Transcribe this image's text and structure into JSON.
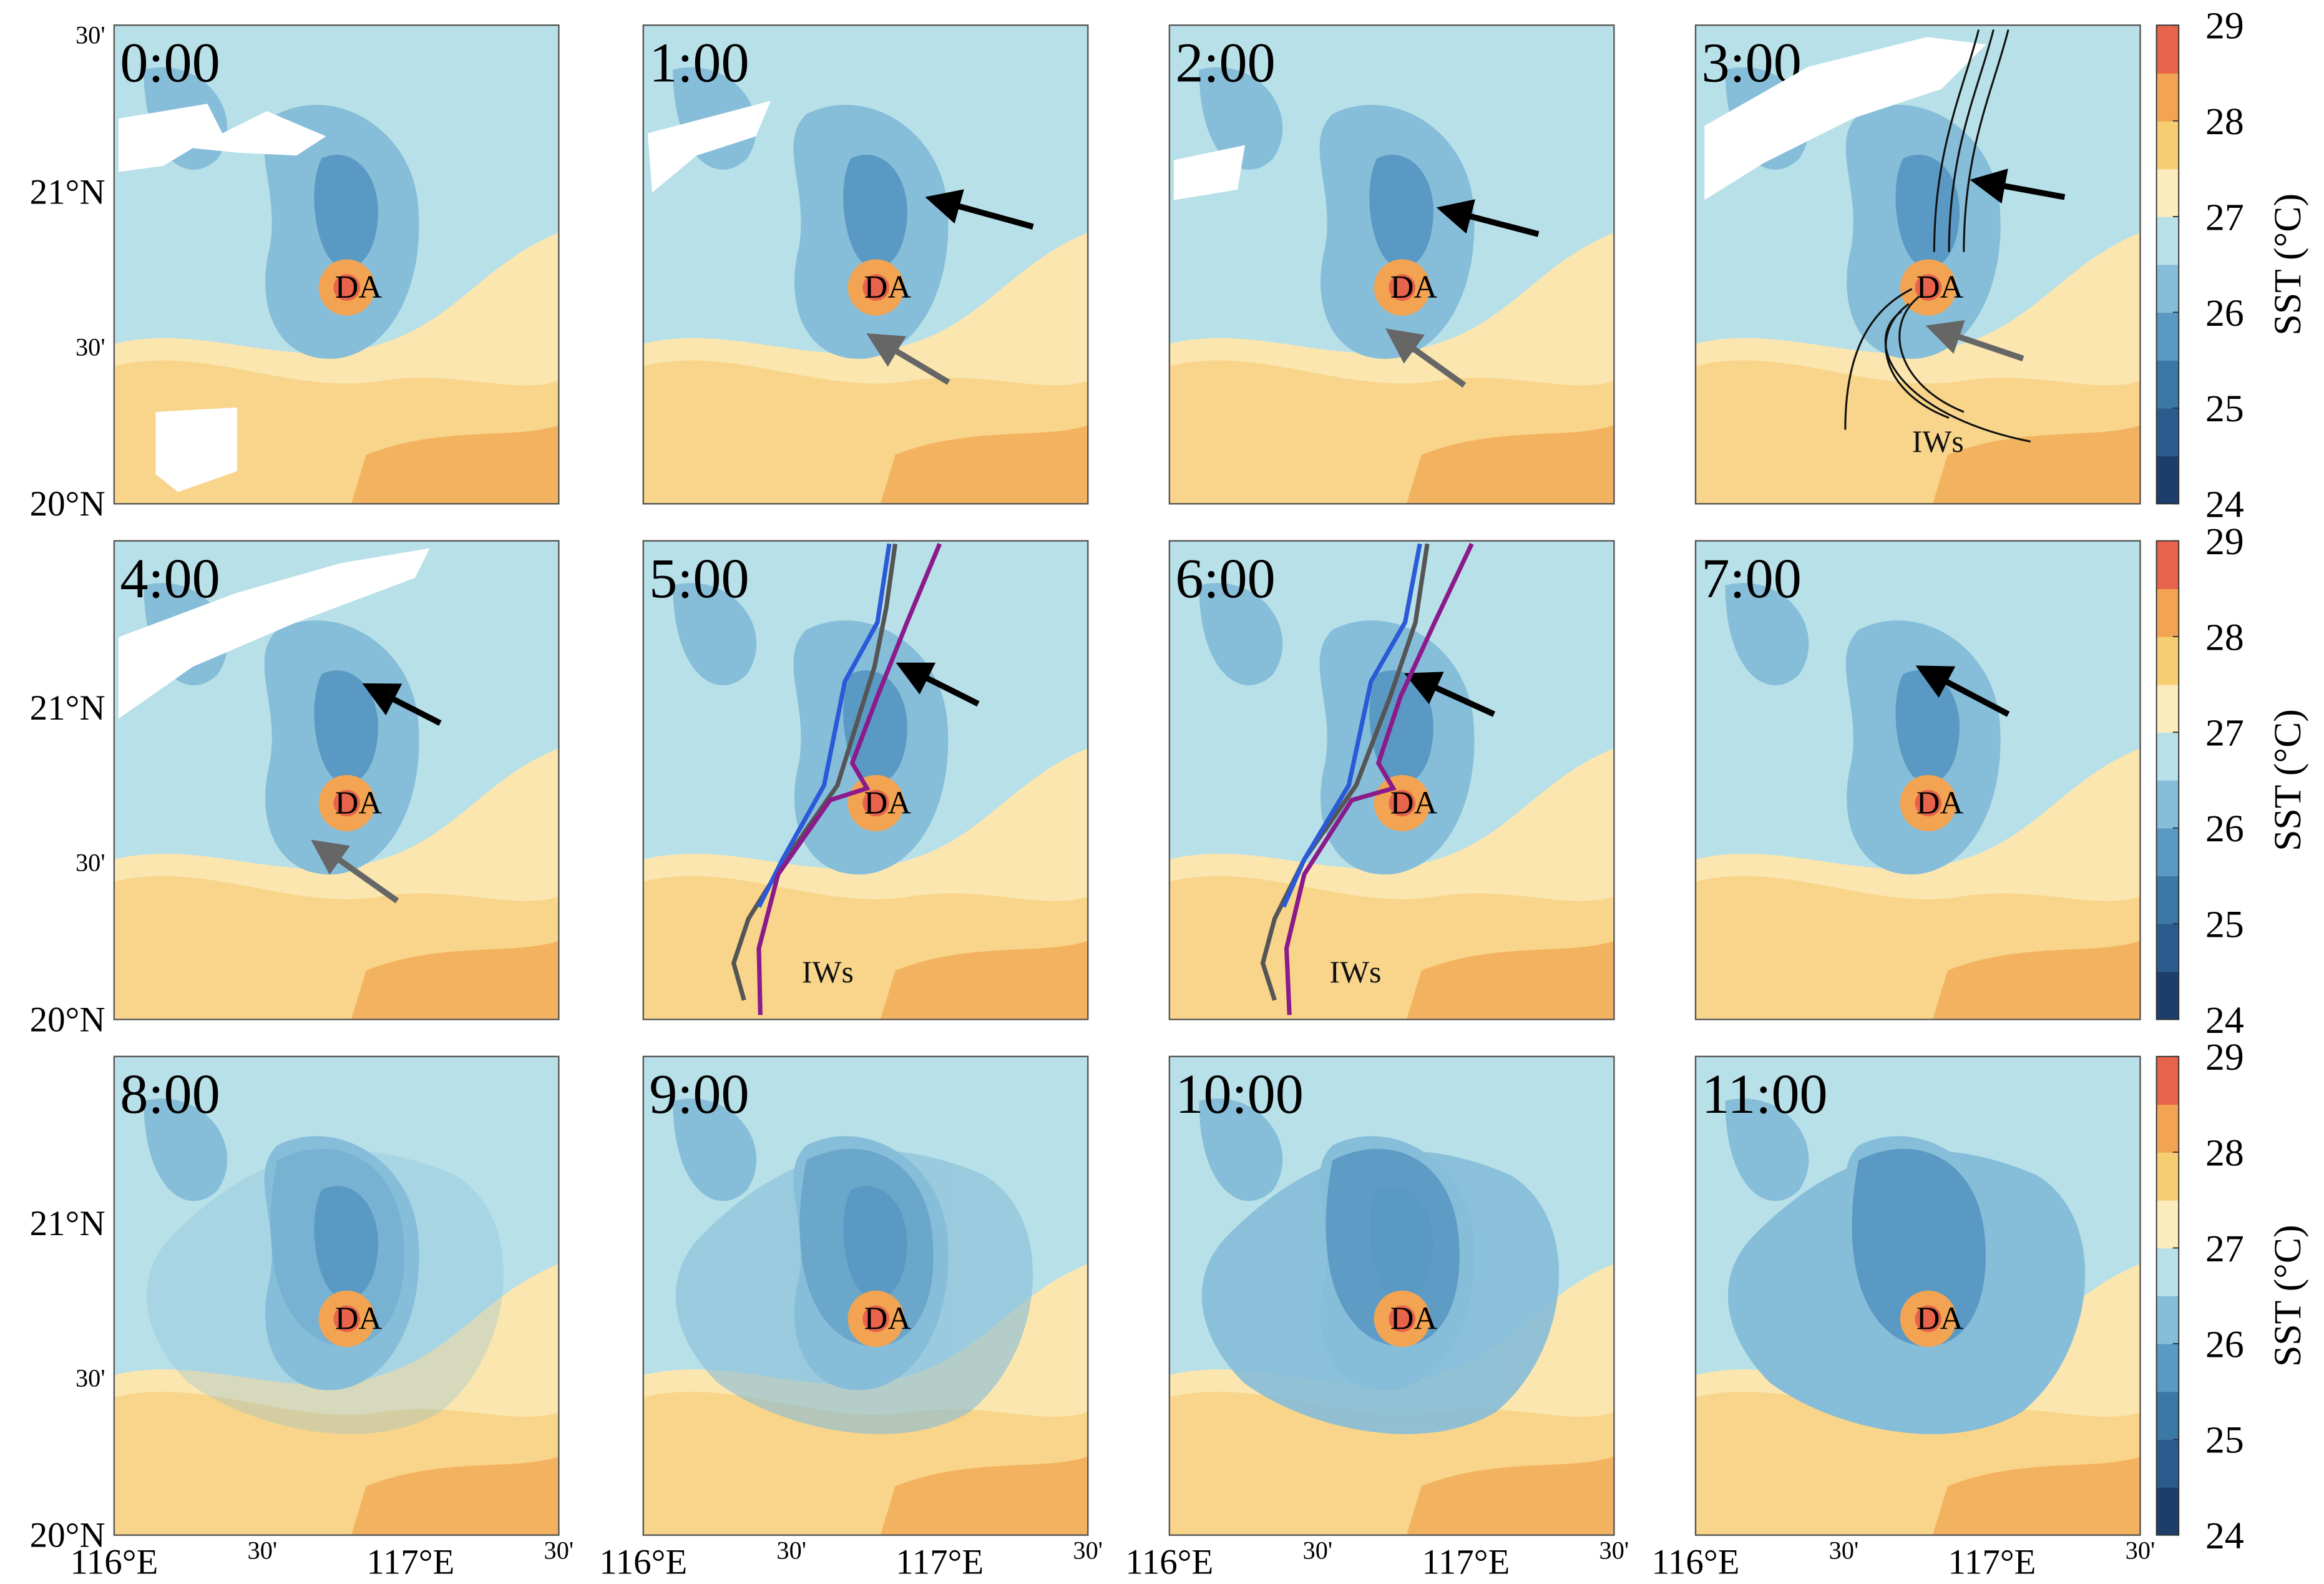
{
  "panels": [
    {
      "time": "0:00",
      "labels": [
        "DA"
      ]
    },
    {
      "time": "1:00",
      "labels": [
        "DA"
      ]
    },
    {
      "time": "2:00",
      "labels": [
        "DA"
      ]
    },
    {
      "time": "3:00",
      "labels": [
        "DA",
        "IWs"
      ]
    },
    {
      "time": "4:00",
      "labels": [
        "DA"
      ]
    },
    {
      "time": "5:00",
      "labels": [
        "DA",
        "IWs"
      ]
    },
    {
      "time": "6:00",
      "labels": [
        "DA",
        "IWs"
      ]
    },
    {
      "time": "7:00",
      "labels": [
        "DA"
      ]
    },
    {
      "time": "8:00",
      "labels": [
        "DA"
      ]
    },
    {
      "time": "9:00",
      "labels": [
        "DA"
      ]
    },
    {
      "time": "10:00",
      "labels": [
        "DA"
      ]
    },
    {
      "time": "11:00",
      "labels": [
        "DA"
      ]
    }
  ],
  "lat_labels": [
    "20°N",
    "30'",
    "21°N",
    "30'"
  ],
  "lon_labels": [
    "116°E",
    "30'",
    "117°E",
    "30'"
  ],
  "colorbar": {
    "label": "SST (°C)",
    "lim": [
      24,
      29
    ],
    "ticks": [
      24,
      25,
      26,
      27,
      28,
      29
    ],
    "colors": [
      "#1d3d6b",
      "#2a5b8c",
      "#3b78a6",
      "#5a99c3",
      "#86bdd9",
      "#b8e0e8",
      "#fbebbd",
      "#f7cd72",
      "#f2a452",
      "#e7634b"
    ]
  }
}
